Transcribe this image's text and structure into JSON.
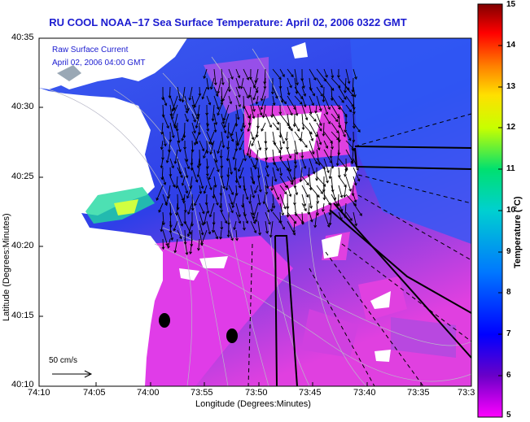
{
  "title": "RU COOL  NOAA−17  Sea Surface Temperature:  April 02, 2006 0322 GMT",
  "legend": {
    "line1": "Raw Surface Current",
    "line2": "April 02, 2006 04:00 GMT"
  },
  "scale_label": "50 cm/s",
  "colorbar": {
    "label": "Temperature (°C)",
    "ticks": [
      "15",
      "14",
      "13",
      "12",
      "11",
      "10",
      "9",
      "8",
      "7",
      "6",
      "5"
    ],
    "range": [
      5,
      15
    ]
  },
  "axes": {
    "xlabel": "Longitude (Degrees:Minutes)",
    "ylabel": "Latitude (Degrees:Minutes)",
    "xticks": [
      "74:10",
      "74:05",
      "74:00",
      "73:55",
      "73:50",
      "73:45",
      "73:40",
      "73:35",
      "73:3"
    ],
    "yticks": [
      "40:35",
      "40:30",
      "40:25",
      "40:20",
      "40:15",
      "40:10"
    ]
  },
  "colors": {
    "title": "#1b1bd0",
    "land": "#ffffff"
  }
}
